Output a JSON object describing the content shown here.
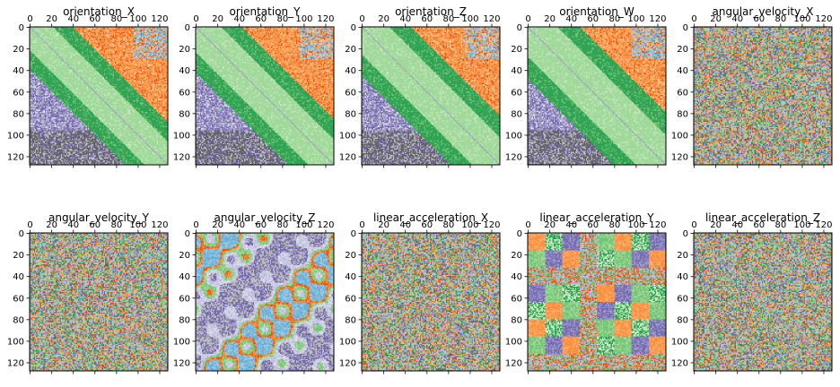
{
  "chart_data": {
    "type": "heatmap",
    "layout": {
      "rows": 2,
      "cols": 5
    },
    "matrix_size": 128,
    "tick_values": [
      0,
      20,
      40,
      60,
      80,
      100,
      120
    ],
    "tick_labels": [
      "0",
      "20",
      "40",
      "60",
      "80",
      "100",
      "120"
    ],
    "palette": [
      "#636363",
      "#bdbdbd",
      "#756bb1",
      "#bcbddc",
      "#dadaeb",
      "#a1d99b",
      "#74c476",
      "#31a354",
      "#fdae6b",
      "#fd8d3c",
      "#e6550d",
      "#9ecae1",
      "#6baed6"
    ],
    "panels": [
      {
        "title": "orientation_X",
        "pattern": "recurrence"
      },
      {
        "title": "orientation_Y",
        "pattern": "recurrence"
      },
      {
        "title": "orientation_Z",
        "pattern": "recurrence"
      },
      {
        "title": "orientation_W",
        "pattern": "recurrence"
      },
      {
        "title": "angular_velocity_X",
        "pattern": "noise"
      },
      {
        "title": "angular_velocity_Y",
        "pattern": "noise"
      },
      {
        "title": "angular_velocity_Z",
        "pattern": "periodic"
      },
      {
        "title": "linear_acceleration_X",
        "pattern": "noise"
      },
      {
        "title": "linear_acceleration_Y",
        "pattern": "blocks"
      },
      {
        "title": "linear_acceleration_Z",
        "pattern": "noise"
      }
    ]
  }
}
